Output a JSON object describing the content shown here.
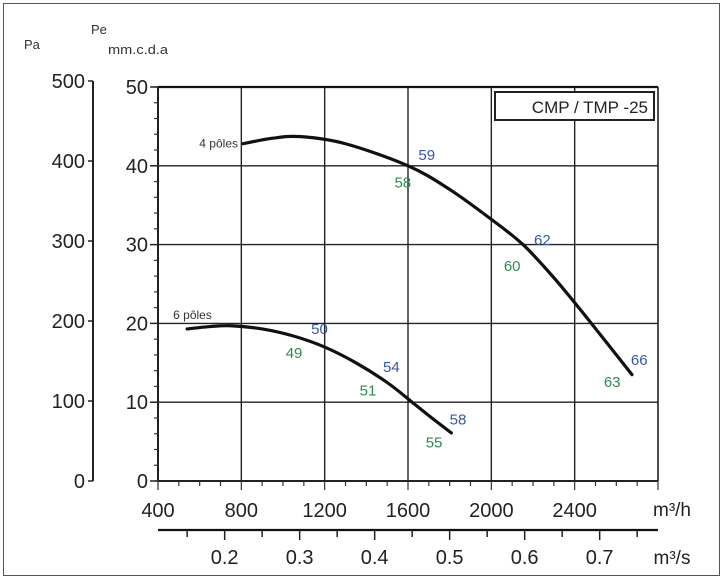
{
  "chart_data": {
    "type": "line",
    "title": "CMP / TMP -25",
    "xlabel": "m³/h",
    "x2label": "m³/s",
    "ylabel_left": "Pa",
    "ylabel_right_top": "Pe",
    "ylabel_right": "mm.c.d.a",
    "xlim": [
      400,
      2800
    ],
    "ylim": [
      0,
      50
    ],
    "ylim_pa": [
      0,
      500
    ],
    "x_ticks": [
      "400",
      "800",
      "1200",
      "1600",
      "2000",
      "2400"
    ],
    "x_tick_values": [
      400,
      800,
      1200,
      1600,
      2000,
      2400
    ],
    "x2_ticks": [
      "0.2",
      "0.3",
      "0.4",
      "0.5",
      "0.6",
      "0.7"
    ],
    "x2_tick_values": [
      0.2,
      0.3,
      0.4,
      0.5,
      0.6,
      0.7
    ],
    "y_ticks": [
      "0",
      "10",
      "20",
      "30",
      "40",
      "50"
    ],
    "y_tick_values": [
      0,
      10,
      20,
      30,
      40,
      50
    ],
    "y_pa_ticks": [
      "0",
      "100",
      "200",
      "300",
      "400",
      "500"
    ],
    "y_pa_tick_values": [
      0,
      100,
      200,
      300,
      400,
      500
    ],
    "grid": true,
    "legend": "top-right",
    "colors": {
      "curve": "#111111",
      "label_blue": "#3a56a8",
      "label_green": "#2f8a52",
      "grid": "#222222"
    },
    "series": [
      {
        "name": "4 pôles",
        "x": [
          808,
          950,
          1086,
          1300,
          1600,
          1800,
          2000,
          2152,
          2300,
          2450,
          2675
        ],
        "y": [
          42.8,
          43.5,
          43.7,
          42.8,
          40.0,
          37.0,
          33.2,
          30.0,
          25.8,
          21.0,
          13.5
        ],
        "annotations": [
          {
            "text": "59",
            "color": "blue",
            "x": 1690,
            "y": 41.5
          },
          {
            "text": "58",
            "color": "green",
            "x": 1575,
            "y": 38.0
          },
          {
            "text": "62",
            "color": "blue",
            "x": 2245,
            "y": 30.7
          },
          {
            "text": "60",
            "color": "green",
            "x": 2100,
            "y": 27.4
          },
          {
            "text": "66",
            "color": "blue",
            "x": 2710,
            "y": 15.5
          },
          {
            "text": "63",
            "color": "green",
            "x": 2580,
            "y": 12.7
          }
        ]
      },
      {
        "name": "6 pôles",
        "x": [
          540,
          650,
          750,
          900,
          1050,
          1200,
          1350,
          1500,
          1620,
          1700,
          1808
        ],
        "y": [
          19.3,
          19.6,
          19.7,
          19.3,
          18.4,
          17.0,
          15.0,
          12.5,
          10.0,
          8.3,
          6.1
        ],
        "annotations": [
          {
            "text": "50",
            "color": "blue",
            "x": 1175,
            "y": 19.4
          },
          {
            "text": "49",
            "color": "green",
            "x": 1053,
            "y": 16.4
          },
          {
            "text": "54",
            "color": "blue",
            "x": 1520,
            "y": 14.6
          },
          {
            "text": "51",
            "color": "green",
            "x": 1408,
            "y": 11.6
          },
          {
            "text": "58",
            "color": "blue",
            "x": 1840,
            "y": 7.9
          },
          {
            "text": "55",
            "color": "green",
            "x": 1725,
            "y": 5.0
          }
        ]
      }
    ]
  }
}
